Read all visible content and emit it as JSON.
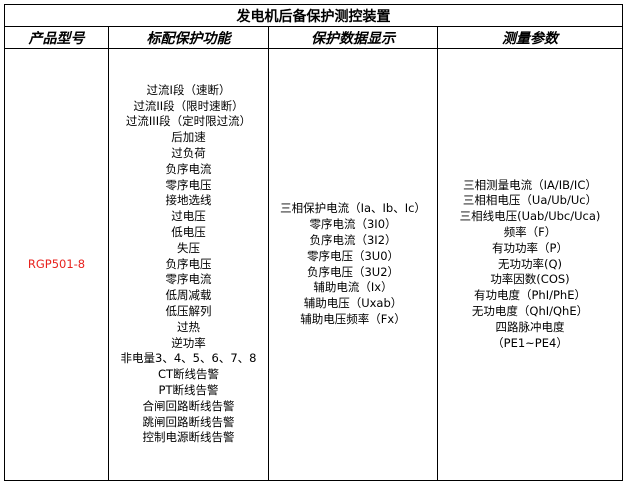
{
  "title": "发电机后备保护测控装置",
  "headers": [
    "产品型号",
    "标配保护功能",
    "保护数据显示",
    "测量参数"
  ],
  "model": "RGP501-8",
  "model_color": "#e8231f",
  "protection_functions": [
    "过流I段（速断）",
    "过流II段（限时速断）",
    "过流III段（定时限过流）",
    "后加速",
    "过负荷",
    "负序电流",
    "零序电压",
    "接地选线",
    "过电压",
    "低电压",
    "失压",
    "负序电压",
    "零序电流",
    "低周减载",
    "低压解列",
    "过热",
    "逆功率",
    "非电量3、4、5、6、7、8",
    "CT断线告警",
    "PT断线告警",
    "合闸回路断线告警",
    "跳闸回路断线告警",
    "控制电源断线告警"
  ],
  "protection_data": [
    "三相保护电流（Ia、Ib、Ic）",
    "零序电流（3I0）",
    "负序电流（3I2）",
    "零序电压（3U0）",
    "负序电压（3U2）",
    "辅助电流（Ix）",
    "辅助电压（Uxab）",
    "辅助电压频率（Fx）"
  ],
  "measurements": [
    "三相测量电流（IA/IB/IC）",
    "三相相电压（Ua/Ub/Uc）",
    "三相线电压(Uab/Ubc/Uca)",
    "频率（F）",
    "有功功率（P）",
    "无功功率(Q)",
    "功率因数(COS)",
    "有功电度（PhI/PhE）",
    "无功电度（QhI/QhE）",
    "四路脉冲电度",
    "（PE1~PE4）"
  ]
}
